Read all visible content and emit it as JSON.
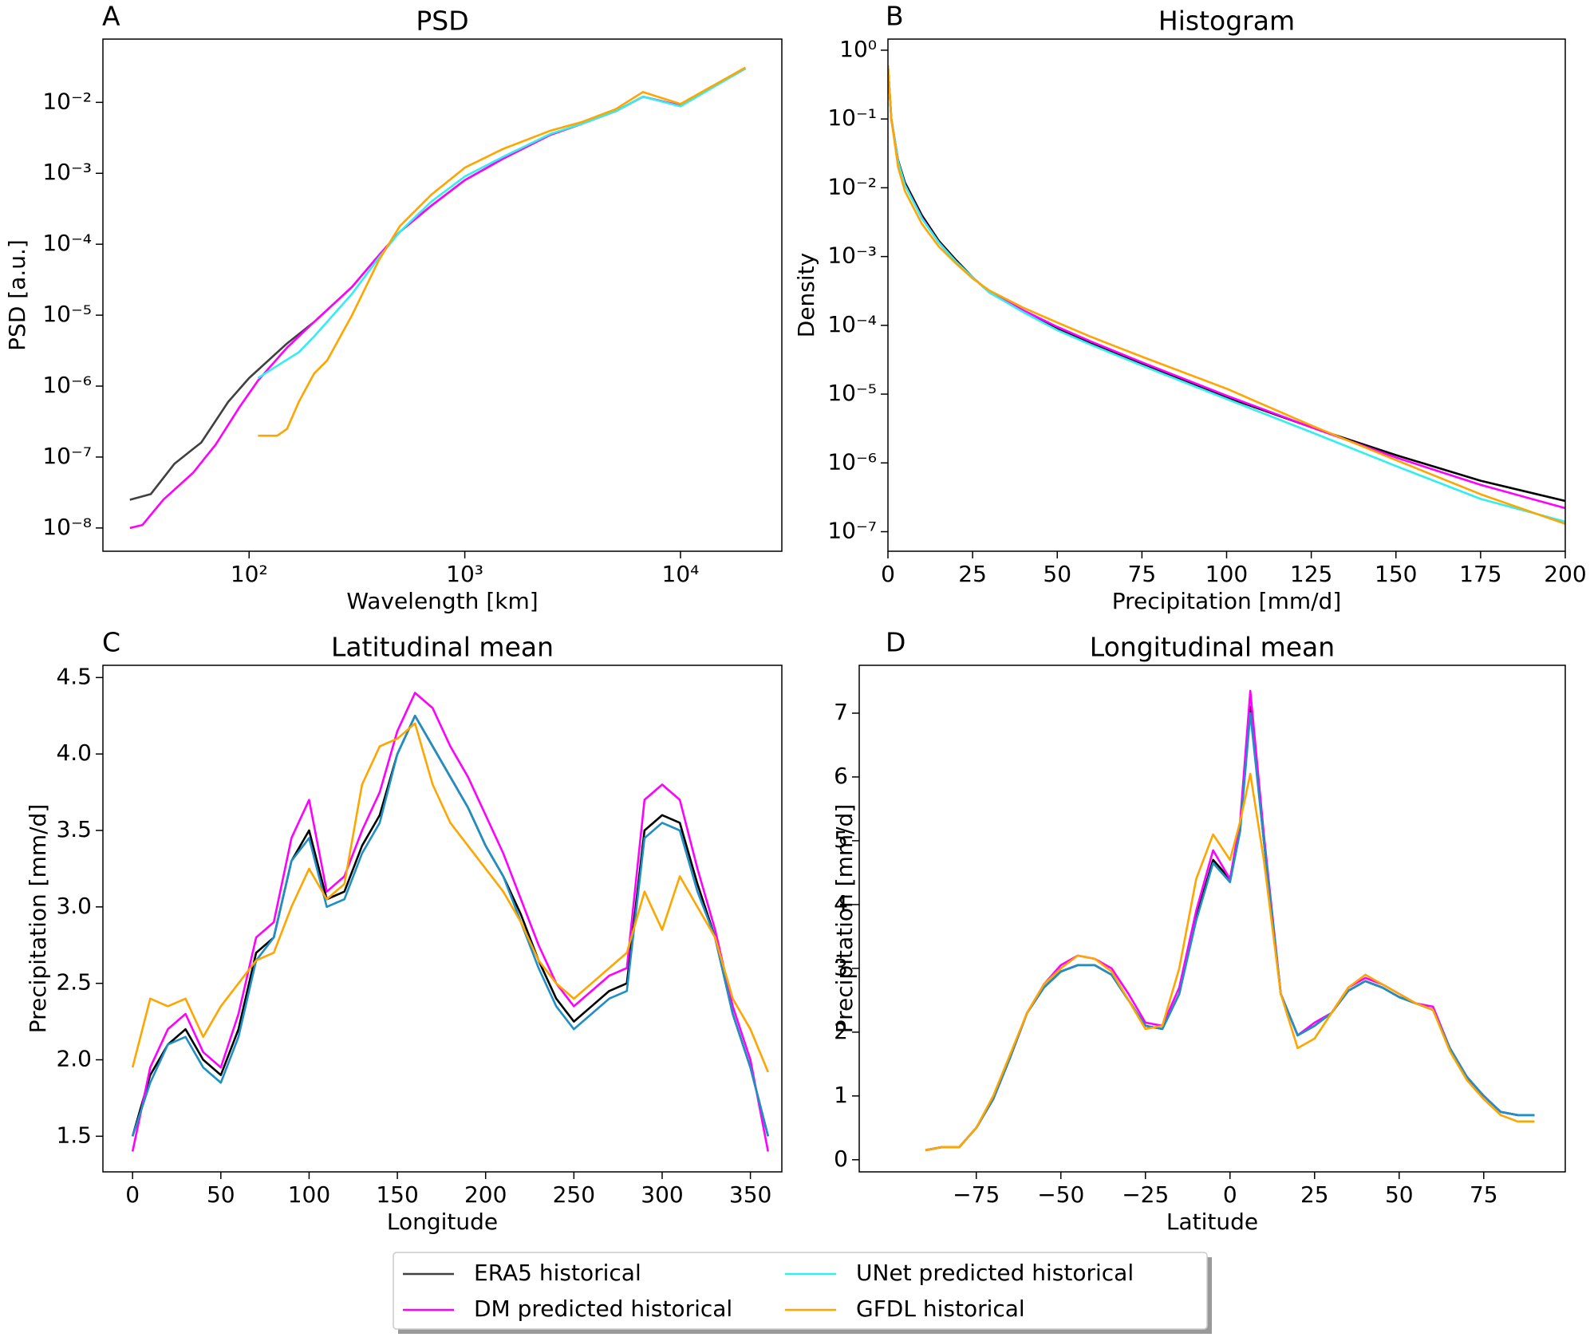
{
  "chart_data": [
    {
      "type": "line",
      "label": "A",
      "title": "PSD",
      "x_label": "Wavelength [km]",
      "y_label": "PSD [a.u.]",
      "xlog": true,
      "ylog": true,
      "xlim": [
        21,
        29500
      ],
      "ylim": [
        4.7e-09,
        0.078
      ],
      "xticks": [
        {
          "value": 100,
          "label": "10²"
        },
        {
          "value": 1000,
          "label": "10³"
        },
        {
          "value": 10000,
          "label": "10⁴"
        }
      ],
      "yticks": [
        {
          "value": 1e-08,
          "label": "10⁻⁸"
        },
        {
          "value": 1e-07,
          "label": "10⁻⁷"
        },
        {
          "value": 1e-06,
          "label": "10⁻⁶"
        },
        {
          "value": 1e-05,
          "label": "10⁻⁵"
        },
        {
          "value": 0.0001,
          "label": "10⁻⁴"
        },
        {
          "value": 0.001,
          "label": "10⁻³"
        },
        {
          "value": 0.01,
          "label": "10⁻²"
        }
      ],
      "series": [
        {
          "name": "ERA5 historical",
          "color": "#404040",
          "x": [
            28,
            35,
            45,
            55,
            60,
            80,
            100,
            150,
            200,
            300,
            400,
            500,
            700,
            1000,
            1500,
            2500,
            3500,
            5000,
            6700,
            10000,
            20000
          ],
          "values": [
            2.5e-08,
            3e-08,
            8e-08,
            1.3e-07,
            1.6e-07,
            6e-07,
            1.3e-06,
            4e-06,
            8e-06,
            2.5e-05,
            7e-05,
            0.00015,
            0.00035,
            0.0008,
            0.0016,
            0.0035,
            0.005,
            0.0075,
            0.012,
            0.009,
            0.03
          ]
        },
        {
          "name": "DM predicted historical",
          "color": "#ff00ff",
          "x": [
            28,
            32,
            40,
            55,
            70,
            90,
            110,
            150,
            200,
            300,
            400,
            500,
            700,
            1000,
            1500,
            2500,
            3500,
            5000,
            6700,
            10000,
            20000
          ],
          "values": [
            1e-08,
            1.1e-08,
            2.5e-08,
            6e-08,
            1.5e-07,
            5e-07,
            1.2e-06,
            3.5e-06,
            8e-06,
            2.5e-05,
            7e-05,
            0.00015,
            0.00035,
            0.0008,
            0.0016,
            0.0035,
            0.005,
            0.0075,
            0.012,
            0.009,
            0.03
          ]
        },
        {
          "name": "UNet predicted historical",
          "color": "#33eeee",
          "x": [
            110,
            130,
            170,
            200,
            300,
            400,
            500,
            700,
            1000,
            1500,
            2500,
            3500,
            5000,
            6700,
            10000,
            20000
          ],
          "values": [
            1.3e-06,
            1.8e-06,
            3e-06,
            5e-06,
            2e-05,
            6.5e-05,
            0.00015,
            0.0004,
            0.0009,
            0.0017,
            0.0036,
            0.005,
            0.0075,
            0.012,
            0.0088,
            0.03
          ]
        },
        {
          "name": "GFDL historical",
          "color": "#ffa500",
          "x": [
            110,
            135,
            150,
            170,
            200,
            230,
            300,
            400,
            500,
            700,
            1000,
            1500,
            2500,
            3500,
            5000,
            6700,
            10000,
            20000
          ],
          "values": [
            2e-07,
            2e-07,
            2.5e-07,
            6e-07,
            1.5e-06,
            2.3e-06,
            1e-05,
            6e-05,
            0.00018,
            0.0005,
            0.0012,
            0.0022,
            0.004,
            0.0053,
            0.008,
            0.014,
            0.0095,
            0.031
          ]
        }
      ]
    },
    {
      "type": "line",
      "label": "B",
      "title": "Histogram",
      "x_label": "Precipitation [mm/d]",
      "y_label": "Density",
      "ylog": true,
      "xlim": [
        0,
        200
      ],
      "ylim": [
        5.2e-08,
        1.45
      ],
      "xticks": [
        0,
        25,
        50,
        75,
        100,
        125,
        150,
        175,
        200
      ],
      "yticks": [
        {
          "value": 1e-07,
          "label": "10⁻⁷"
        },
        {
          "value": 1e-06,
          "label": "10⁻⁶"
        },
        {
          "value": 1e-05,
          "label": "10⁻⁵"
        },
        {
          "value": 0.0001,
          "label": "10⁻⁴"
        },
        {
          "value": 0.001,
          "label": "10⁻³"
        },
        {
          "value": 0.01,
          "label": "10⁻²"
        },
        {
          "value": 0.1,
          "label": "10⁻¹"
        },
        {
          "value": 1,
          "label": "10⁰"
        }
      ],
      "x": [
        0,
        1,
        2,
        3,
        5,
        10,
        15,
        20,
        25,
        30,
        40,
        50,
        60,
        75,
        100,
        125,
        150,
        175,
        200
      ],
      "series": [
        {
          "name": "ERA5 historical",
          "color": "#000000",
          "values": [
            0.6,
            0.1,
            0.05,
            0.025,
            0.012,
            0.004,
            0.0017,
            0.0009,
            0.0005,
            0.0003,
            0.00016,
            9e-05,
            5.5e-05,
            2.8e-05,
            9e-06,
            3.3e-06,
            1.3e-06,
            5.5e-07,
            2.8e-07
          ]
        },
        {
          "name": "DM predicted historical",
          "color": "#ff00ff",
          "values": [
            0.6,
            0.1,
            0.05,
            0.024,
            0.011,
            0.0037,
            0.0016,
            0.00085,
            0.0005,
            0.0003,
            0.000165,
            9.5e-05,
            5.8e-05,
            2.9e-05,
            9.5e-06,
            3.3e-06,
            1.2e-06,
            4.8e-07,
            2.2e-07
          ]
        },
        {
          "name": "UNet predicted historical",
          "color": "#33eeee",
          "values": [
            0.6,
            0.1,
            0.05,
            0.024,
            0.011,
            0.0036,
            0.0016,
            0.00085,
            0.0005,
            0.0003,
            0.000155,
            8.5e-05,
            5.2e-05,
            2.6e-05,
            8.5e-06,
            2.8e-06,
            9e-07,
            3e-07,
            1.4e-07
          ]
        },
        {
          "name": "GFDL historical",
          "color": "#ffa500",
          "values": [
            0.6,
            0.1,
            0.045,
            0.02,
            0.009,
            0.003,
            0.0014,
            0.0008,
            0.00048,
            0.00032,
            0.00018,
            0.00011,
            6.8e-05,
            3.5e-05,
            1.2e-05,
            3.5e-06,
            1.1e-06,
            3.5e-07,
            1.3e-07
          ]
        }
      ]
    },
    {
      "type": "line",
      "label": "C",
      "title": "Latitudinal mean",
      "x_label": "Longitude",
      "y_label": "Precipitation [mm/d]",
      "xlim": [
        -16.8,
        367.8
      ],
      "ylim": [
        1.267,
        4.58
      ],
      "xticks": [
        0,
        50,
        100,
        150,
        200,
        250,
        300,
        350
      ],
      "yticks": [
        1.5,
        {
          "value": 2,
          "label": "2.0"
        },
        2.5,
        {
          "value": 3,
          "label": "3.0"
        },
        3.5,
        {
          "value": 4,
          "label": "4.0"
        },
        4.5
      ],
      "x": [
        0,
        10,
        20,
        30,
        40,
        50,
        60,
        70,
        80,
        90,
        100,
        110,
        120,
        130,
        140,
        150,
        160,
        170,
        180,
        190,
        200,
        210,
        220,
        230,
        240,
        250,
        260,
        270,
        280,
        290,
        300,
        310,
        320,
        330,
        340,
        350,
        360
      ],
      "series": [
        {
          "name": "ERA5 historical",
          "color": "#000000",
          "values": [
            1.5,
            1.9,
            2.1,
            2.2,
            2.0,
            1.9,
            2.2,
            2.7,
            2.8,
            3.3,
            3.5,
            3.05,
            3.1,
            3.4,
            3.6,
            4.0,
            4.25,
            4.05,
            3.85,
            3.65,
            3.4,
            3.2,
            2.95,
            2.65,
            2.4,
            2.25,
            2.35,
            2.45,
            2.5,
            3.5,
            3.6,
            3.55,
            3.15,
            2.8,
            2.3,
            1.95,
            1.5
          ]
        },
        {
          "name": "DM predicted historical",
          "color": "#ff00ff",
          "values": [
            1.4,
            1.95,
            2.2,
            2.3,
            2.05,
            1.95,
            2.3,
            2.8,
            2.9,
            3.45,
            3.7,
            3.1,
            3.2,
            3.5,
            3.75,
            4.15,
            4.4,
            4.3,
            4.05,
            3.85,
            3.6,
            3.35,
            3.05,
            2.75,
            2.5,
            2.35,
            2.45,
            2.55,
            2.6,
            3.7,
            3.8,
            3.7,
            3.25,
            2.85,
            2.35,
            2.0,
            1.4
          ]
        },
        {
          "name": "UNet predicted historical",
          "color": "#1f8fc4",
          "values": [
            1.5,
            1.85,
            2.1,
            2.15,
            1.95,
            1.85,
            2.15,
            2.65,
            2.8,
            3.3,
            3.45,
            3.0,
            3.05,
            3.35,
            3.55,
            4.0,
            4.25,
            4.05,
            3.85,
            3.65,
            3.4,
            3.2,
            2.9,
            2.6,
            2.35,
            2.2,
            2.3,
            2.4,
            2.45,
            3.45,
            3.55,
            3.5,
            3.1,
            2.8,
            2.3,
            1.95,
            1.5
          ]
        },
        {
          "name": "GFDL historical",
          "color": "#ffa500",
          "values": [
            1.95,
            2.4,
            2.35,
            2.4,
            2.15,
            2.35,
            2.5,
            2.65,
            2.7,
            3.0,
            3.25,
            3.05,
            3.15,
            3.8,
            4.05,
            4.1,
            4.2,
            3.8,
            3.55,
            3.4,
            3.25,
            3.1,
            2.9,
            2.65,
            2.5,
            2.4,
            2.5,
            2.6,
            2.7,
            3.1,
            2.85,
            3.2,
            3.0,
            2.8,
            2.4,
            2.2,
            1.92
          ]
        }
      ]
    },
    {
      "type": "line",
      "label": "D",
      "title": "Longitudinal mean",
      "x_label": "Latitude",
      "y_label": "Precipitation [mm/d]",
      "xlim": [
        -109.6,
        99.1
      ],
      "ylim": [
        -0.19,
        7.75
      ],
      "xticks": [
        {
          "value": -75,
          "label": "−75"
        },
        {
          "value": -50,
          "label": "−50"
        },
        {
          "value": -25,
          "label": "−25"
        },
        0,
        25,
        50,
        75
      ],
      "yticks": [
        0,
        1,
        2,
        3,
        4,
        5,
        6,
        7
      ],
      "x": [
        -90,
        -85,
        -80,
        -75,
        -70,
        -65,
        -60,
        -55,
        -50,
        -45,
        -40,
        -35,
        -30,
        -25,
        -20,
        -15,
        -10,
        -5,
        0,
        3,
        6,
        10,
        15,
        20,
        25,
        30,
        35,
        40,
        45,
        50,
        55,
        60,
        65,
        70,
        75,
        80,
        85,
        90
      ],
      "series": [
        {
          "name": "ERA5 historical",
          "color": "#000000",
          "values": [
            0.15,
            0.2,
            0.2,
            0.5,
            0.95,
            1.6,
            2.3,
            2.7,
            2.95,
            3.05,
            3.05,
            2.9,
            2.5,
            2.1,
            2.05,
            2.6,
            3.8,
            4.7,
            4.4,
            5.2,
            7.1,
            5.0,
            2.6,
            1.95,
            2.1,
            2.3,
            2.65,
            2.8,
            2.7,
            2.55,
            2.45,
            2.35,
            1.75,
            1.3,
            1.0,
            0.75,
            0.7,
            0.7
          ]
        },
        {
          "name": "DM predicted historical",
          "color": "#ff00ff",
          "values": [
            0.15,
            0.2,
            0.2,
            0.5,
            0.95,
            1.6,
            2.3,
            2.75,
            3.05,
            3.2,
            3.15,
            3.0,
            2.6,
            2.15,
            2.1,
            2.7,
            3.9,
            4.85,
            4.4,
            5.3,
            7.35,
            5.1,
            2.6,
            1.95,
            2.15,
            2.3,
            2.7,
            2.85,
            2.75,
            2.6,
            2.45,
            2.4,
            1.75,
            1.3,
            1.0,
            0.75,
            0.7,
            0.7
          ]
        },
        {
          "name": "UNet predicted historical",
          "color": "#1f8fc4",
          "values": [
            0.15,
            0.2,
            0.2,
            0.5,
            0.95,
            1.6,
            2.3,
            2.7,
            2.95,
            3.05,
            3.05,
            2.9,
            2.5,
            2.1,
            2.05,
            2.6,
            3.75,
            4.65,
            4.35,
            5.15,
            7.0,
            5.0,
            2.6,
            1.95,
            2.1,
            2.3,
            2.65,
            2.8,
            2.7,
            2.55,
            2.45,
            2.35,
            1.75,
            1.3,
            1.0,
            0.75,
            0.7,
            0.7
          ]
        },
        {
          "name": "GFDL historical",
          "color": "#ffa500",
          "values": [
            0.15,
            0.2,
            0.2,
            0.5,
            1.0,
            1.65,
            2.3,
            2.75,
            3.0,
            3.2,
            3.15,
            2.95,
            2.5,
            2.05,
            2.1,
            3.0,
            4.4,
            5.1,
            4.7,
            5.3,
            6.05,
            4.7,
            2.6,
            1.75,
            1.9,
            2.3,
            2.7,
            2.9,
            2.75,
            2.6,
            2.45,
            2.35,
            1.7,
            1.25,
            0.95,
            0.7,
            0.6,
            0.6
          ]
        }
      ]
    }
  ]
}
